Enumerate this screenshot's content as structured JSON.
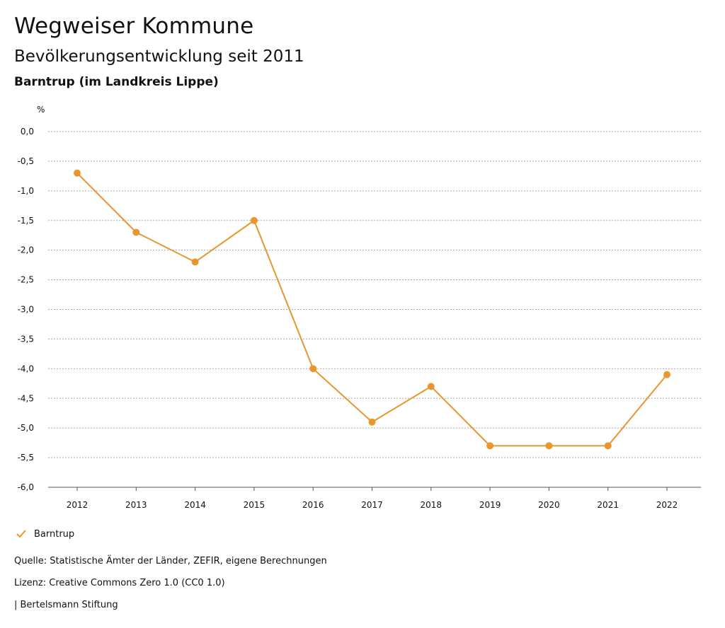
{
  "header": {
    "title": "Wegweiser Kommune",
    "subtitle": "Bevölkerungsentwicklung seit 2011",
    "region": "Barntrup (im Landkreis Lippe)"
  },
  "chart_data": {
    "type": "line",
    "ylabel": "%",
    "ylim": [
      -6.0,
      0.0
    ],
    "ytick_step": 0.5,
    "ytick_labels": [
      "0,0",
      "-0,5",
      "-1,0",
      "-1,5",
      "-2,0",
      "-2,5",
      "-3,0",
      "-3,5",
      "-4,0",
      "-4,5",
      "-5,0",
      "-5,5",
      "-6,0"
    ],
    "x": [
      "2012",
      "2013",
      "2014",
      "2015",
      "2016",
      "2017",
      "2018",
      "2019",
      "2020",
      "2021",
      "2022"
    ],
    "series": [
      {
        "name": "Barntrup",
        "color": "#e8962e",
        "values": [
          -0.7,
          -1.7,
          -2.2,
          -1.5,
          -4.0,
          -4.9,
          -4.3,
          -5.3,
          -5.3,
          -5.3,
          -4.1
        ]
      }
    ],
    "grid": true,
    "legend_position": "bottom-left"
  },
  "legend": {
    "label": "Barntrup",
    "icon": "check-icon"
  },
  "footer": {
    "source": "Quelle: Statistische Ämter der Länder, ZEFIR, eigene Berechnungen",
    "license": "Lizenz: Creative Commons Zero 1.0 (CC0 1.0)",
    "organization": "| Bertelsmann Stiftung"
  }
}
